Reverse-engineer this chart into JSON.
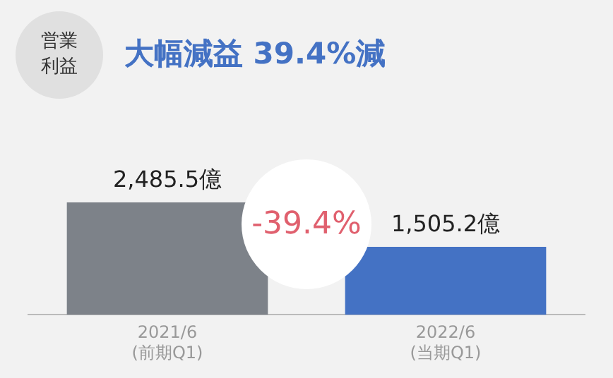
{
  "chart_data": {
    "type": "bar",
    "title": "大幅減益 39.4%減",
    "subtitle": "営業利益",
    "categories": [
      "2021/6\n(前期Q1)",
      "2022/6\n(当期Q1)"
    ],
    "values": [
      2485.5,
      1505.2
    ],
    "colors": [
      "#7d8289",
      "#4472c4"
    ],
    "value_labels": [
      "2,485.5億",
      "1,505.2億"
    ],
    "annotations": [
      "-39.4%"
    ],
    "grid": false,
    "legend": false
  }
}
